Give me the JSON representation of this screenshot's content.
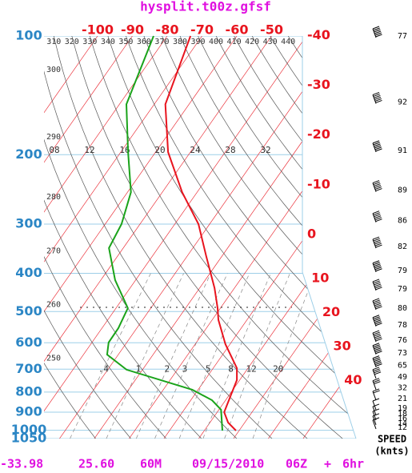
{
  "chart_data": {
    "type": "skewt",
    "title": "hysplit.t00z.gfsf",
    "ylim": [
      100,
      1050
    ],
    "yticks": [
      100,
      200,
      300,
      400,
      500,
      600,
      700,
      800,
      900,
      1000,
      1050
    ],
    "log_scale": true,
    "isotherms": [
      -100,
      -90,
      -80,
      -70,
      -60,
      -50,
      -40,
      -30,
      -20,
      -10,
      0,
      10,
      20,
      30,
      40
    ],
    "isentropes": [
      250,
      260,
      270,
      280,
      290,
      300,
      310,
      320,
      330,
      340,
      350,
      360,
      370,
      380,
      390,
      400,
      410,
      420,
      430,
      440
    ],
    "mixing_ratios": [
      {
        "value": 0.4,
        "label": ".4"
      },
      1,
      2,
      3,
      5,
      8,
      12,
      20
    ],
    "upper_labels": [
      "08",
      "12",
      "16",
      "20",
      "24",
      "28",
      "32"
    ],
    "series": [
      {
        "color": "#e8141e",
        "pressure": [
          100,
          149,
          197,
          249,
          300,
          362,
          436,
          490,
          525,
          605,
          696,
          746,
          819,
          900,
          956,
          1002
        ],
        "values": [
          -73.3,
          -66.8,
          -56.4,
          -44.3,
          -33.2,
          -24.5,
          -15.7,
          -10.8,
          -8.2,
          -1.3,
          6.8,
          9.2,
          10.6,
          12,
          15.2,
          19.1
        ]
      },
      {
        "color": "#1aa31a",
        "pressure": [
          100,
          149,
          197,
          249,
          300,
          345,
          416,
          490,
          551,
          599,
          643,
          702,
          789,
          839,
          887,
          1002
        ],
        "values": [
          -83.9,
          -78,
          -67.9,
          -59,
          -55.3,
          -54.1,
          -45.9,
          -36.6,
          -35.3,
          -35.2,
          -33.2,
          -24.6,
          -1.7,
          6.1,
          10.6,
          15.2
        ]
      }
    ],
    "winds": {
      "pressure": [
        100,
        147,
        195,
        246,
        294,
        342,
        393,
        438,
        490,
        540,
        591,
        636,
        685,
        732,
        781,
        831,
        879,
        908,
        934,
        960,
        983
      ],
      "speed": [
        77,
        92,
        91,
        89,
        86,
        82,
        79,
        79,
        80,
        78,
        76,
        73,
        65,
        49,
        32,
        21,
        19,
        18,
        16,
        14,
        12
      ]
    },
    "speed_label": "SPEED",
    "speed_units": "(knts)",
    "footer": [
      "-33.98",
      "25.60",
      "60M",
      "09/15/2010",
      "06Z",
      "+",
      "6hr"
    ]
  }
}
